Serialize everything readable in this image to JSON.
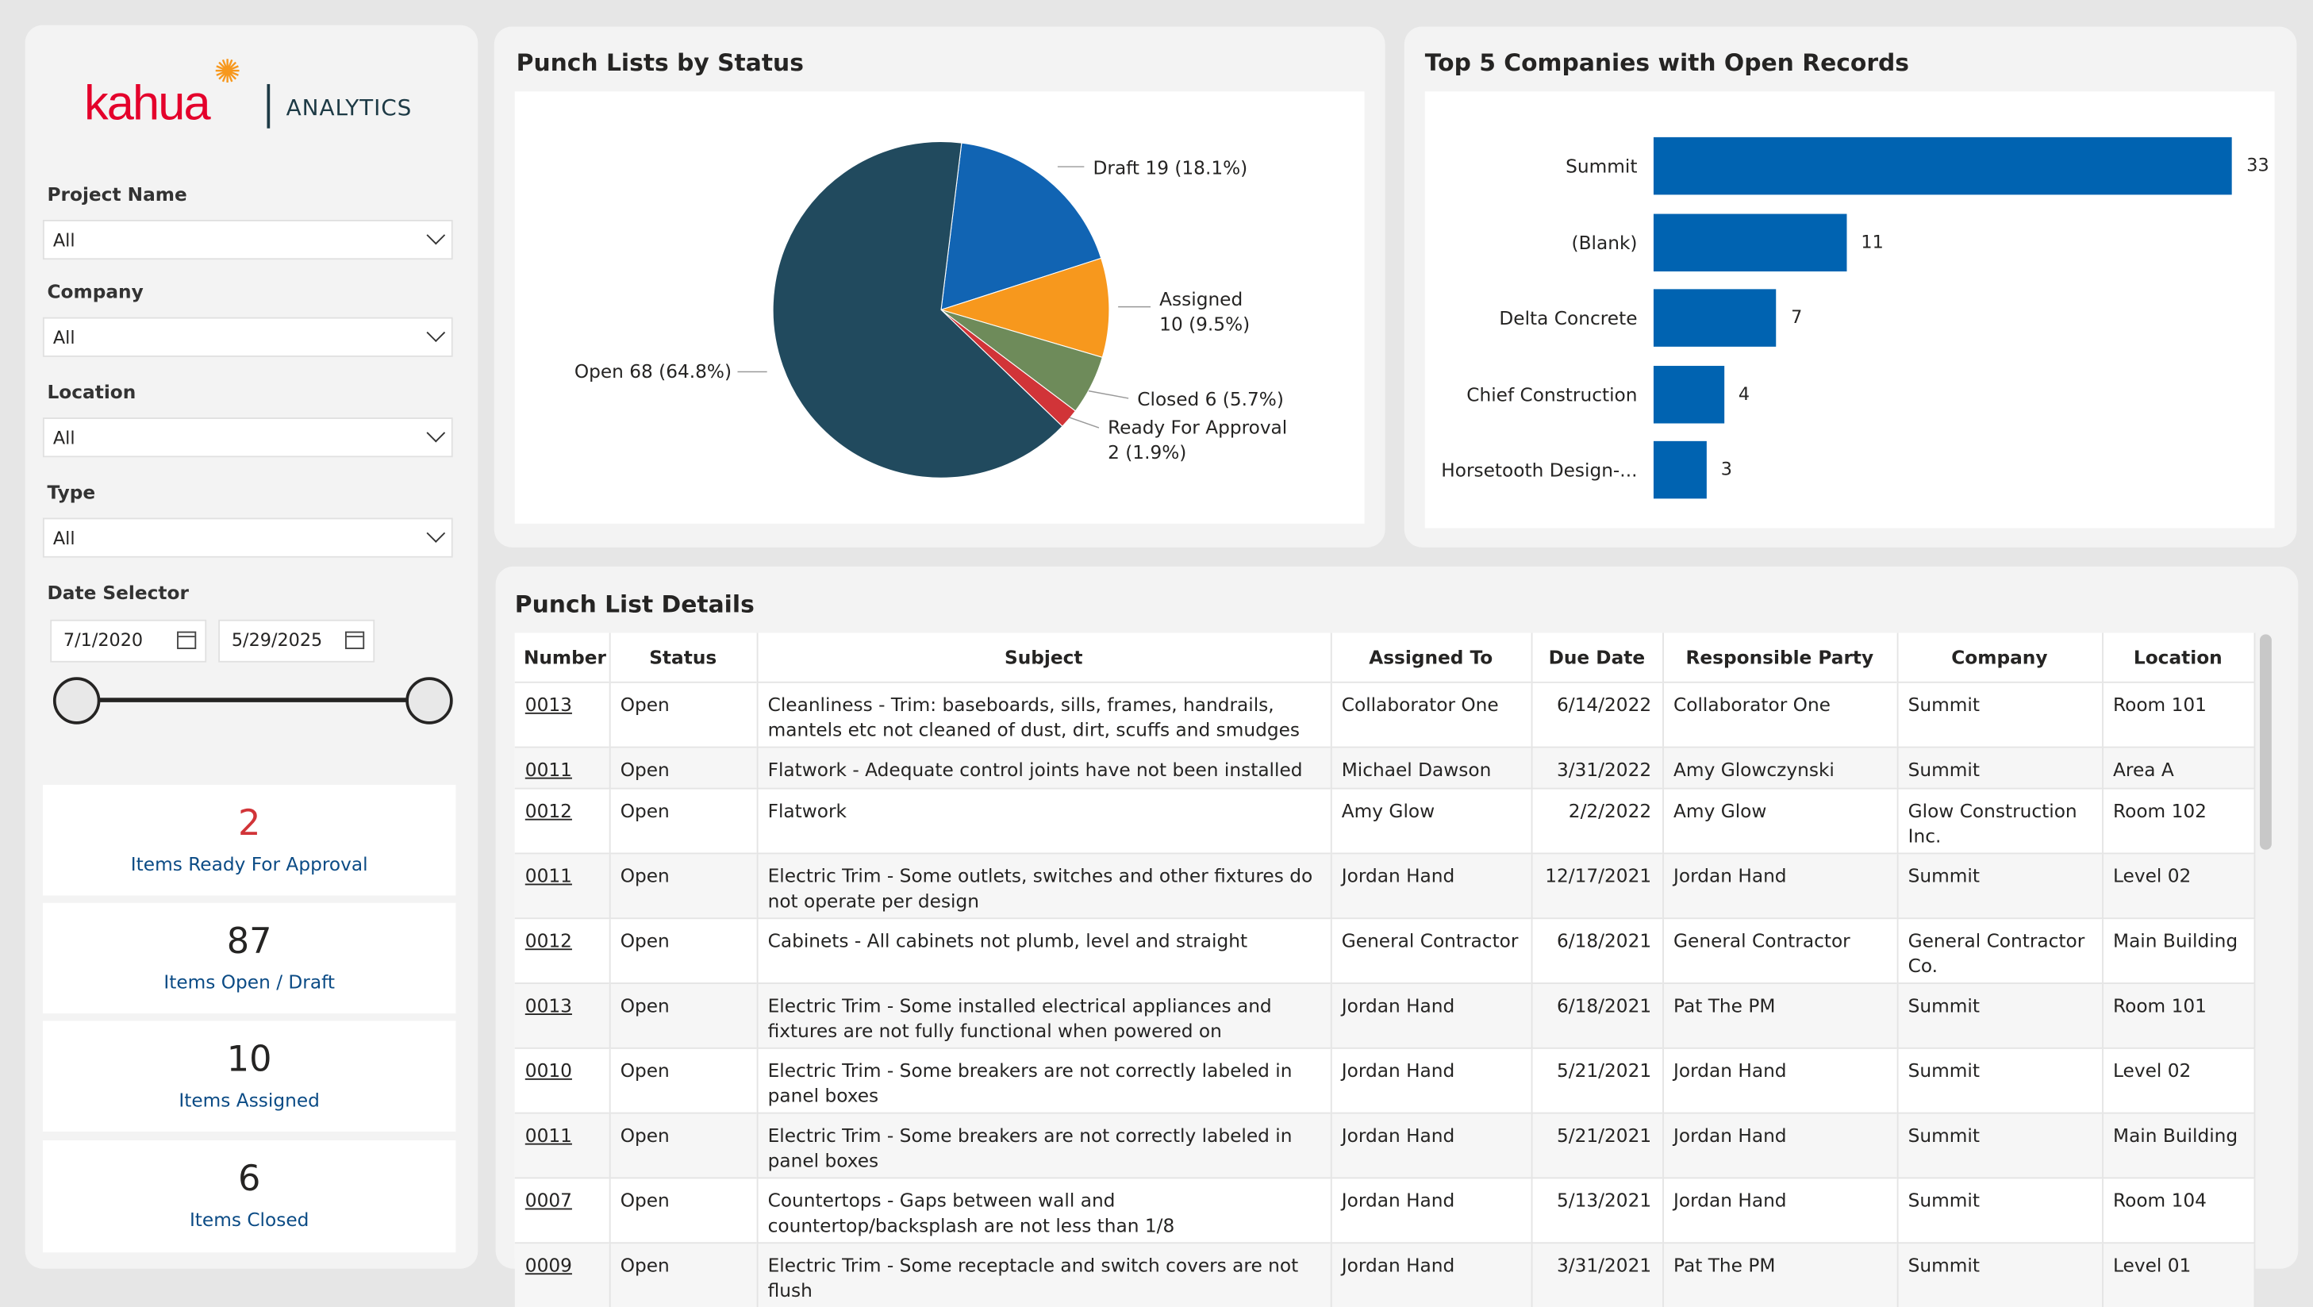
{
  "brand": {
    "logo_text": "kahua",
    "product": "ANALYTICS"
  },
  "filters": [
    {
      "label": "Project Name",
      "value": "All"
    },
    {
      "label": "Company",
      "value": "All"
    },
    {
      "label": "Location",
      "value": "All"
    },
    {
      "label": "Type",
      "value": "All"
    }
  ],
  "date_selector": {
    "label": "Date Selector",
    "start": "7/1/2020",
    "end": "5/29/2025",
    "slider_range": [
      0,
      1
    ]
  },
  "cards": [
    {
      "value": "2",
      "label": "Items Ready For Approval",
      "color": "#d13438"
    },
    {
      "value": "87",
      "label": "Items Open / Draft",
      "color": "#252423"
    },
    {
      "value": "10",
      "label": "Items Assigned",
      "color": "#252423"
    },
    {
      "value": "6",
      "label": "Items Closed",
      "color": "#252423"
    }
  ],
  "pie": {
    "title": "Punch Lists by Status",
    "slices": [
      {
        "name": "Draft",
        "value": 19,
        "label": "Draft 19 (18.1%)",
        "color": "#1164b3"
      },
      {
        "name": "Assigned",
        "value": 10,
        "label": "Assigned",
        "label2": "10 (9.5%)",
        "color": "#f7981d"
      },
      {
        "name": "Closed",
        "value": 6,
        "label": "Closed 6 (5.7%)",
        "color": "#6e8b5a"
      },
      {
        "name": "Ready For Approval",
        "value": 2,
        "label": "Ready For Approval",
        "label2": "2 (1.9%)",
        "color": "#d13438"
      },
      {
        "name": "Open",
        "value": 68,
        "label": "Open 68 (64.8%)",
        "color": "#214a5e"
      }
    ]
  },
  "bars": {
    "title": "Top 5 Companies with Open Records",
    "color": "#0063b1",
    "categories": [
      "Summit",
      "(Blank)",
      "Delta Concrete",
      "Chief Construction",
      "Horsetooth Design-..."
    ],
    "values": [
      33,
      11,
      7,
      4,
      3
    ]
  },
  "table": {
    "title": "Punch List Details",
    "columns": [
      "Number",
      "Status",
      "Subject",
      "Assigned To",
      "Due Date",
      "Responsible Party",
      "Company",
      "Location"
    ],
    "rows": [
      [
        "0013",
        "Open",
        "Cleanliness - Trim: baseboards, sills, frames, handrails, mantels etc not cleaned of dust, dirt, scuffs and smudges",
        "Collaborator One",
        "6/14/2022",
        "Collaborator One",
        "Summit",
        "Room 101"
      ],
      [
        "0011",
        "Open",
        "Flatwork - Adequate control joints have not been installed",
        "Michael Dawson",
        "3/31/2022",
        "Amy Glowczynski",
        "Summit",
        "Area A"
      ],
      [
        "0012",
        "Open",
        "Flatwork",
        "Amy Glow",
        "2/2/2022",
        "Amy Glow",
        "Glow Construction Inc.",
        "Room 102"
      ],
      [
        "0011",
        "Open",
        "Electric Trim - Some outlets, switches and other fixtures do not operate per design",
        "Jordan Hand",
        "12/17/2021",
        "Jordan Hand",
        "Summit",
        "Level 02"
      ],
      [
        "0012",
        "Open",
        "Cabinets - All cabinets not plumb, level and straight",
        "General Contractor",
        "6/18/2021",
        "General Contractor",
        "General Contractor Co.",
        "Main Building"
      ],
      [
        "0013",
        "Open",
        "Electric Trim - Some installed electrical appliances and fixtures are not fully functional when powered on",
        "Jordan Hand",
        "6/18/2021",
        "Pat The PM",
        "Summit",
        "Room 101"
      ],
      [
        "0010",
        "Open",
        "Electric Trim - Some breakers are not correctly labeled in panel boxes",
        "Jordan Hand",
        "5/21/2021",
        "Jordan Hand",
        "Summit",
        "Level 02"
      ],
      [
        "0011",
        "Open",
        "Electric Trim - Some breakers are not correctly labeled in panel boxes",
        "Jordan Hand",
        "5/21/2021",
        "Jordan Hand",
        "Summit",
        "Main Building"
      ],
      [
        "0007",
        "Open",
        "Countertops - Gaps between wall and countertop/backsplash are not less than 1/8",
        "Jordan Hand",
        "5/13/2021",
        "Jordan Hand",
        "Summit",
        "Room 104"
      ],
      [
        "0009",
        "Open",
        "Electric Trim - Some receptacle and switch covers are not flush",
        "Jordan Hand",
        "3/31/2021",
        "Pat The PM",
        "Summit",
        "Level 01"
      ]
    ]
  }
}
